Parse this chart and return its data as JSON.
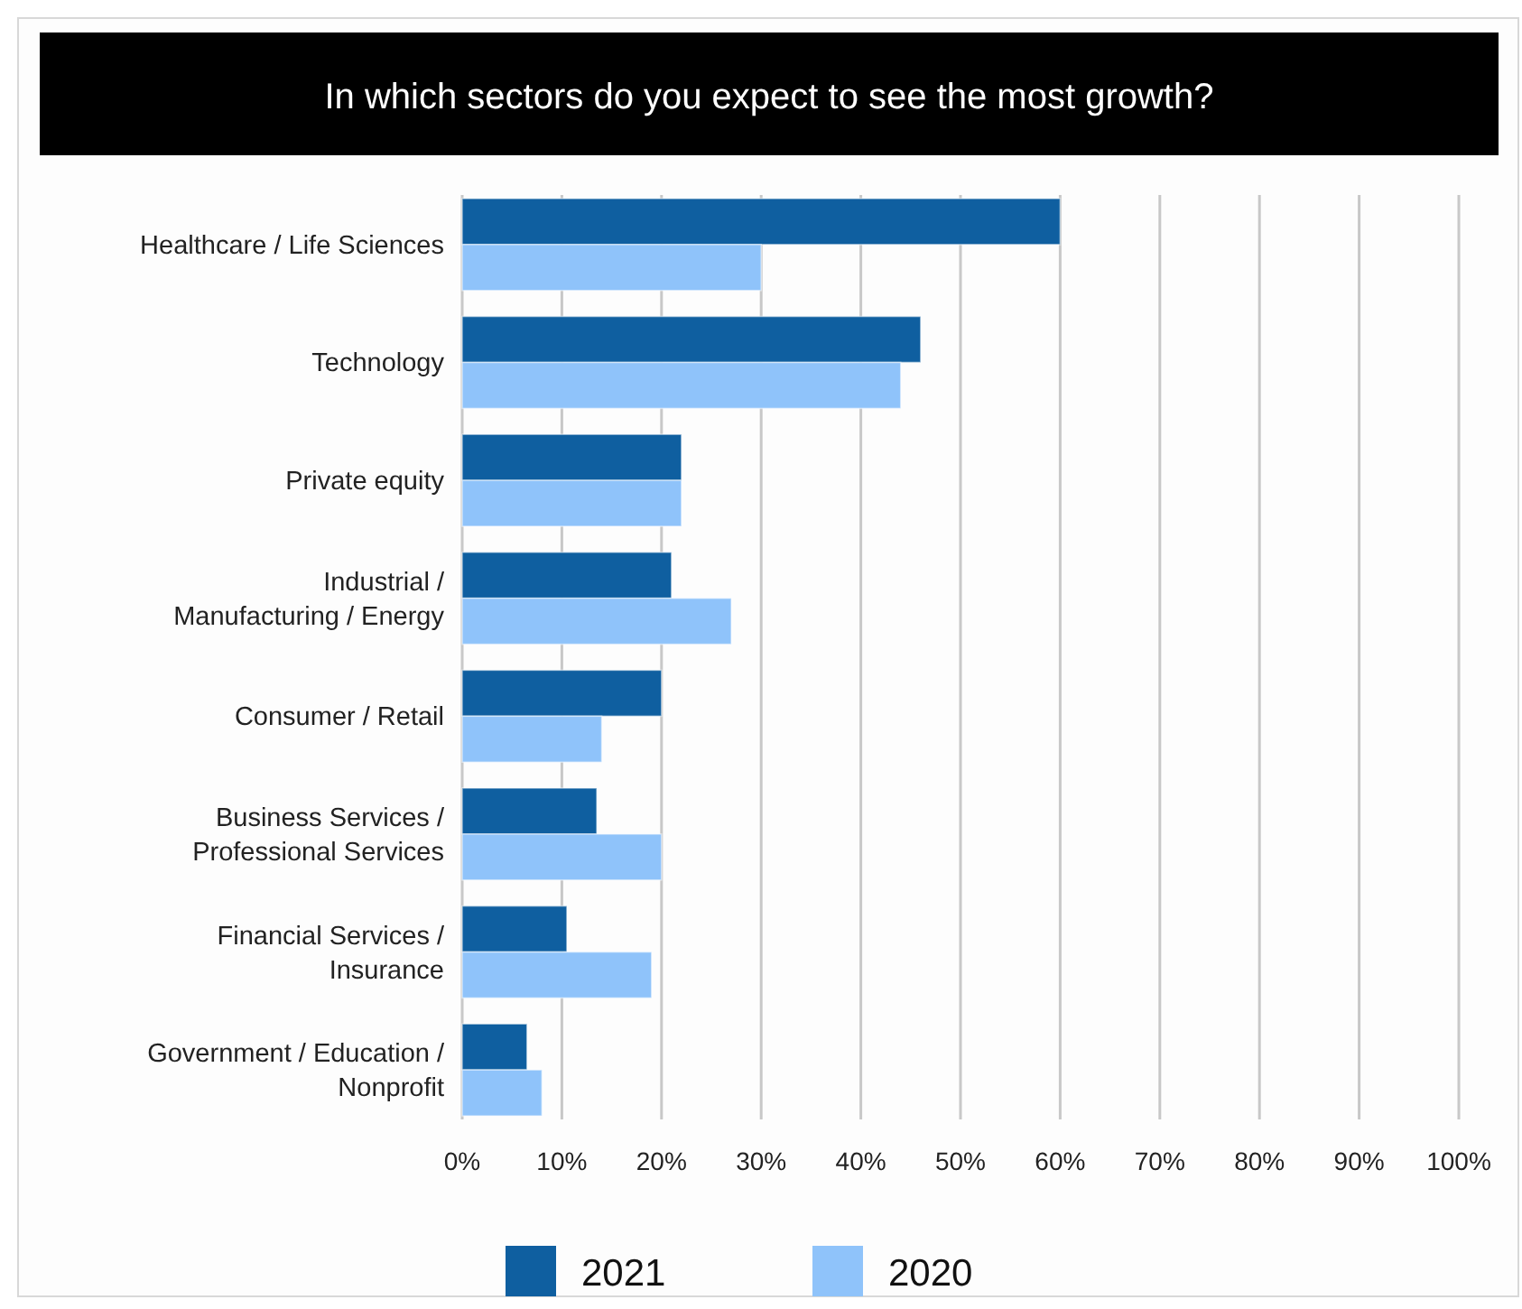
{
  "chart_data": {
    "type": "bar",
    "orientation": "horizontal",
    "title": "In which sectors do you expect to see the most growth?",
    "categories": [
      "Healthcare / Life Sciences",
      "Technology",
      "Private equity",
      "Industrial / Manufacturing / Energy",
      "Consumer / Retail",
      "Business Services / Professional Services",
      "Financial Services / Insurance",
      "Government / Education / Nonprofit"
    ],
    "series": [
      {
        "name": "2021",
        "color": "#0f5fa0",
        "values": [
          60,
          46,
          22,
          21,
          20,
          13.5,
          10.5,
          6.5
        ]
      },
      {
        "name": "2020",
        "color": "#8fc3fa",
        "values": [
          30,
          44,
          22,
          27,
          14,
          20,
          19,
          8
        ]
      }
    ],
    "xlim": [
      0,
      100
    ],
    "xticks": [
      {
        "value": 0,
        "label": "0%"
      },
      {
        "value": 10,
        "label": "10%"
      },
      {
        "value": 20,
        "label": "20%"
      },
      {
        "value": 30,
        "label": "30%"
      },
      {
        "value": 40,
        "label": "40%"
      },
      {
        "value": 50,
        "label": "50%"
      },
      {
        "value": 60,
        "label": "60%"
      },
      {
        "value": 70,
        "label": "70%"
      },
      {
        "value": 80,
        "label": "80%"
      },
      {
        "value": 90,
        "label": "90%"
      },
      {
        "value": 100,
        "label": "100%"
      }
    ],
    "grid": "x",
    "legend": "bottom"
  }
}
